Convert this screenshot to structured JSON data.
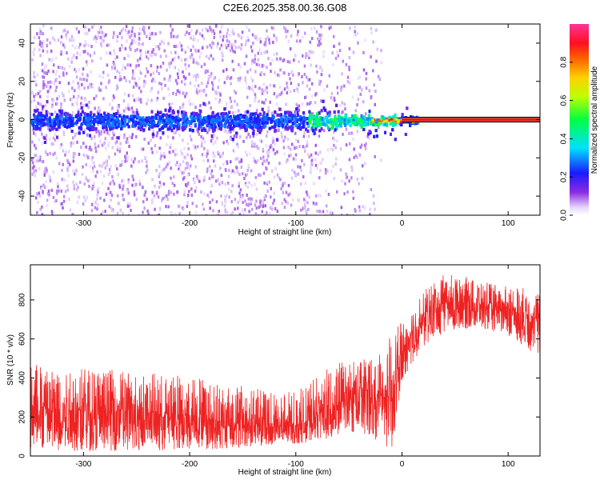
{
  "figure_title": "C2E6.2025.358.00.36.G08",
  "colors": {
    "plot_background": "#ffffff",
    "snr_line": "#ee2222",
    "frame": "#000000"
  },
  "chart_data": [
    {
      "type": "heatmap",
      "title": "",
      "xlabel": "Height of straight line (km)",
      "ylabel": "Frequency (Hz)",
      "xlim": [
        -350,
        130
      ],
      "ylim": [
        -50,
        50
      ],
      "x_ticks": [
        "-300",
        "-200",
        "-100",
        "0",
        "100"
      ],
      "x_tick_values": [
        -300,
        -200,
        -100,
        0,
        100
      ],
      "y_ticks": [
        "-40",
        "-20",
        "0",
        "20",
        "40"
      ],
      "y_tick_values": [
        -40,
        -20,
        0,
        20,
        40
      ],
      "colorbar": {
        "label": "Normalized spectral amplitude",
        "range": [
          0.0,
          1.0
        ],
        "ticks": [
          "0.0",
          "0.2",
          "0.4",
          "0.6",
          "0.8"
        ],
        "tick_values": [
          0.0,
          0.2,
          0.4,
          0.6,
          0.8
        ],
        "colormap": "rainbow (white → purple → blue → cyan → green → yellow → orange → red → pink)"
      },
      "features": {
        "signal_line_frequency_hz": 0,
        "signal_line_start_km": 0,
        "signal_line_amplitude": 0.9,
        "noise_band_half_width_hz": 6,
        "noise_scatter_extent_km": [
          -350,
          -20
        ],
        "highlight_region_km": [
          -100,
          0
        ]
      }
    },
    {
      "type": "line",
      "title": "",
      "xlabel": "Height of straight line (km)",
      "ylabel": "SNR (10 * v/v)",
      "xlim": [
        -350,
        130
      ],
      "ylim": [
        0,
        980
      ],
      "x_ticks": [
        "-300",
        "-200",
        "-100",
        "0",
        "100"
      ],
      "x_tick_values": [
        -300,
        -200,
        -100,
        0,
        100
      ],
      "y_ticks": [
        "0",
        "200",
        "400",
        "600",
        "800"
      ],
      "y_tick_values": [
        0,
        200,
        400,
        600,
        800
      ],
      "series": [
        {
          "x": [
            -350,
            -300,
            -250,
            -200,
            -150,
            -120,
            -100,
            -80,
            -60,
            -40,
            -20,
            -10,
            0,
            10,
            20,
            30,
            40,
            50,
            60,
            70,
            80,
            90,
            100,
            110,
            120,
            130
          ],
          "upper": [
            500,
            460,
            430,
            420,
            360,
            330,
            330,
            420,
            480,
            510,
            560,
            620,
            690,
            760,
            840,
            900,
            930,
            930,
            920,
            900,
            890,
            880,
            870,
            870,
            860,
            840
          ],
          "lower": [
            20,
            25,
            25,
            30,
            40,
            60,
            60,
            80,
            100,
            130,
            60,
            20,
            380,
            480,
            560,
            600,
            630,
            640,
            650,
            660,
            650,
            630,
            620,
            580,
            540,
            520
          ],
          "mean": [
            250,
            230,
            220,
            200,
            160,
            150,
            150,
            210,
            270,
            300,
            300,
            300,
            520,
            620,
            700,
            750,
            780,
            790,
            790,
            780,
            770,
            760,
            750,
            740,
            720,
            700
          ]
        }
      ]
    }
  ]
}
